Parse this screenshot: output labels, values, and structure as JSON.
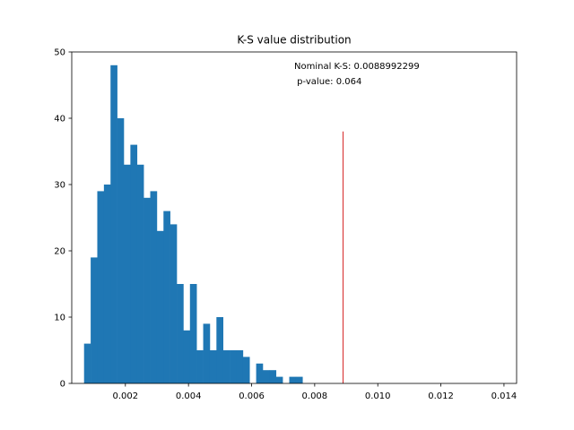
{
  "chart_data": {
    "type": "histogram",
    "title": "K-S value distribution",
    "xlabel": "",
    "ylabel": "",
    "bar_color": "#1f77b4",
    "xlim": [
      0.0003,
      0.0144
    ],
    "ylim": [
      0,
      50
    ],
    "x_ticks": [
      0.002,
      0.004,
      0.006,
      0.008,
      0.01,
      0.012,
      0.014
    ],
    "x_tick_labels": [
      "0.002",
      "0.004",
      "0.006",
      "0.008",
      "0.010",
      "0.012",
      "0.014"
    ],
    "y_ticks": [
      0,
      10,
      20,
      30,
      40,
      50
    ],
    "y_tick_labels": [
      "0",
      "10",
      "20",
      "30",
      "40",
      "50"
    ],
    "bin_start": 0.00069,
    "bin_width": 0.0002098,
    "counts": [
      6,
      19,
      29,
      30,
      48,
      40,
      33,
      36,
      33,
      28,
      29,
      23,
      26,
      24,
      15,
      8,
      15,
      5,
      9,
      5,
      10,
      5,
      5,
      5,
      4,
      0,
      3,
      2,
      2,
      1,
      0,
      1,
      1
    ],
    "nominal_line": {
      "x": 0.0088992299,
      "y_max": 38,
      "color": "#d62728"
    },
    "annotation": {
      "line1": "Nominal K-S: 0.0088992299",
      "line2": " p-value: 0.064"
    },
    "grid": false,
    "legend": "none"
  }
}
